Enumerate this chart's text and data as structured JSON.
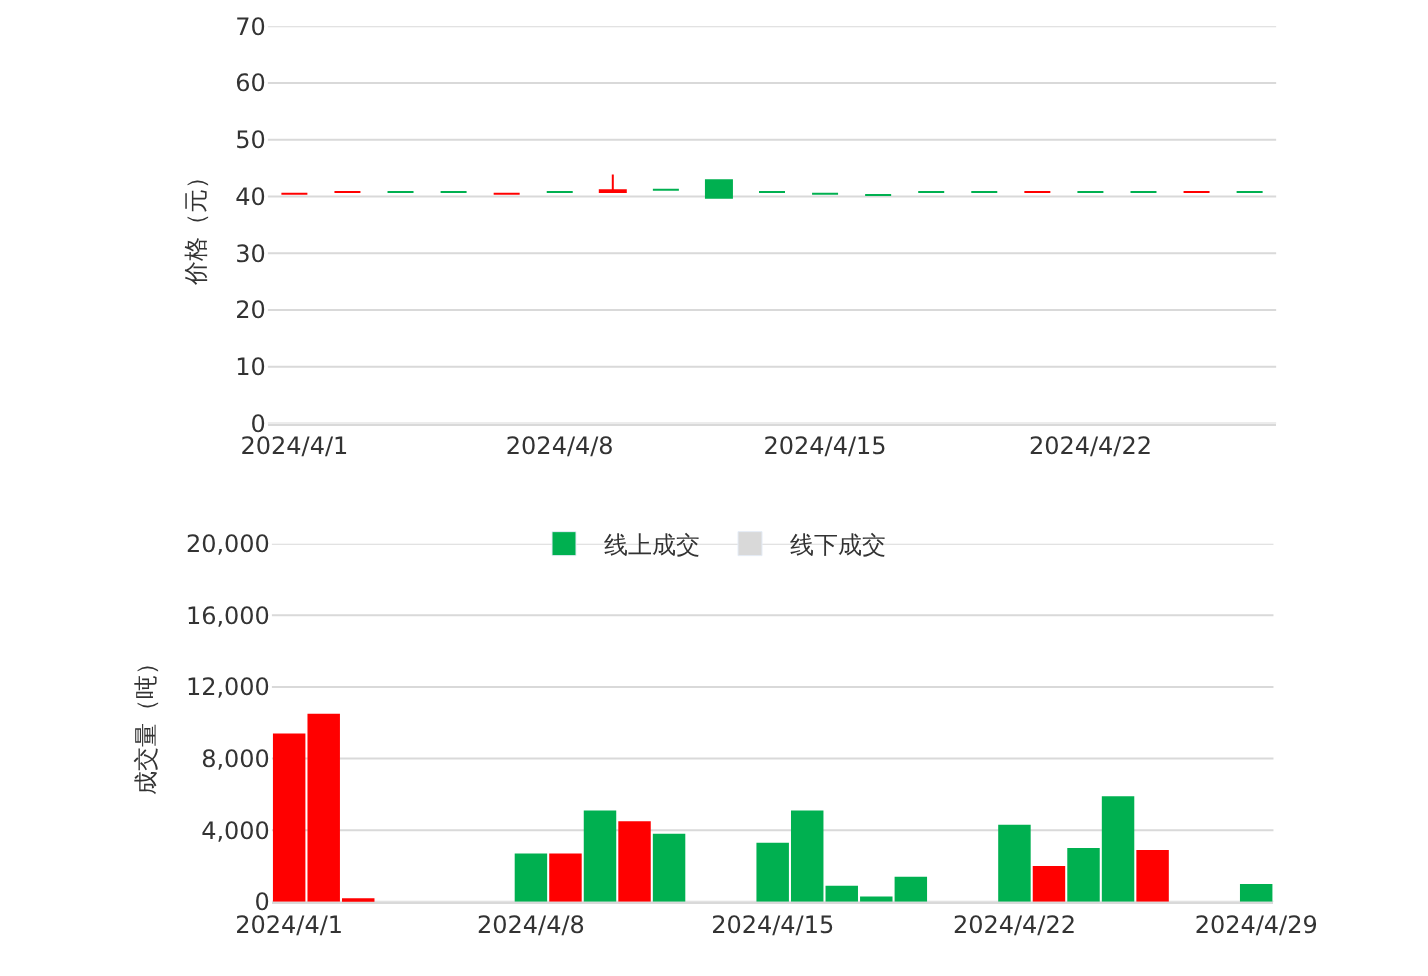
{
  "chart_data": [
    {
      "type": "candlestick",
      "ylabel": "价格（元）",
      "categories": [
        "2024/4/1",
        null,
        null,
        null,
        null,
        "2024/4/8",
        null,
        null,
        null,
        null,
        "2024/4/15",
        null,
        null,
        null,
        null,
        "2024/4/22",
        null,
        null,
        null
      ],
      "ohlc": [
        [
          40.5,
          40.5,
          40.5,
          40.5
        ],
        [
          40.8,
          40.8,
          40.8,
          40.8
        ],
        [
          40.8,
          40.8,
          40.8,
          40.8
        ],
        [
          40.8,
          40.8,
          40.8,
          40.8
        ],
        [
          40.5,
          40.5,
          40.5,
          40.5
        ],
        [
          40.8,
          40.8,
          40.8,
          40.8
        ],
        [
          40.8,
          43.9,
          40.8,
          41.1
        ],
        [
          41.2,
          41.2,
          41.2,
          41.2
        ],
        [
          42.9,
          42.9,
          39.8,
          39.8
        ],
        [
          40.8,
          40.8,
          40.8,
          40.8
        ],
        [
          40.5,
          40.5,
          40.5,
          40.5
        ],
        [
          40.3,
          40.3,
          40.3,
          40.3
        ],
        [
          40.8,
          40.8,
          40.8,
          40.8
        ],
        [
          40.8,
          40.8,
          40.8,
          40.8
        ],
        [
          40.8,
          40.8,
          40.8,
          40.8
        ],
        [
          40.8,
          40.8,
          40.8,
          40.8
        ],
        [
          40.8,
          40.8,
          40.8,
          40.8
        ],
        [
          40.8,
          40.8,
          40.8,
          40.8
        ],
        [
          40.8,
          40.8,
          40.8,
          40.8
        ]
      ],
      "colors": [
        "#ff0000",
        "#ff0000",
        "#00b050",
        "#00b050",
        "#ff0000",
        "#00b050",
        "#ff0000",
        "#00b050",
        "#00b050",
        "#00b050",
        "#00b050",
        "#00b050",
        "#00b050",
        "#00b050",
        "#ff0000",
        "#00b050",
        "#00b050",
        "#ff0000",
        "#00b050"
      ],
      "ylim": [
        0,
        70
      ],
      "yticks": [
        0,
        10,
        20,
        30,
        40,
        50,
        60,
        70
      ],
      "grid": "y",
      "legend": false
    },
    {
      "type": "bar",
      "ylabel": "成交量（吨）",
      "legend": "top",
      "grid": "y",
      "x": [
        "2024-04-01",
        "2024-04-02",
        "2024-04-03",
        "2024-04-08",
        "2024-04-09",
        "2024-04-10",
        "2024-04-11",
        "2024-04-12",
        "2024-04-15",
        "2024-04-16",
        "2024-04-17",
        "2024-04-18",
        "2024-04-19",
        "2024-04-22",
        "2024-04-23",
        "2024-04-24",
        "2024-04-25",
        "2024-04-26",
        "2024-04-29"
      ],
      "series": [
        {
          "name": "线上成交",
          "color": "#00b050",
          "colors": [
            "#ff0000",
            "#ff0000",
            "#ff0000",
            "#00b050",
            "#ff0000",
            "#00b050",
            "#ff0000",
            "#00b050",
            "#00b050",
            "#00b050",
            "#00b050",
            "#00b050",
            "#00b050",
            "#00b050",
            "#ff0000",
            "#00b050",
            "#00b050",
            "#ff0000",
            "#00b050"
          ],
          "values": [
            9400,
            10500,
            200,
            2700,
            2700,
            5100,
            4500,
            3800,
            3300,
            5100,
            900,
            300,
            1400,
            4300,
            2000,
            3000,
            5900,
            2900,
            1000
          ]
        },
        {
          "name": "线下成交",
          "color": "#d9d9d9",
          "values": [
            null,
            null,
            null,
            null,
            null,
            null,
            null,
            null,
            null,
            null,
            null,
            null,
            null,
            null,
            null,
            null,
            null,
            null,
            null
          ]
        }
      ],
      "xlim": [
        "2024-03-31T12:00",
        "2024-04-29T12:00"
      ],
      "xticks": [
        {
          "value": "2024-04-01",
          "label": "2024/4/1"
        },
        {
          "value": "2024-04-08",
          "label": "2024/4/8"
        },
        {
          "value": "2024-04-15",
          "label": "2024/4/15"
        },
        {
          "value": "2024-04-22",
          "label": "2024/4/22"
        },
        {
          "value": "2024-04-29",
          "label": "2024/4/29"
        }
      ],
      "ylim": [
        0,
        20000
      ],
      "yticks": [
        {
          "value": 20000,
          "label": "20,000"
        },
        {
          "value": 16000,
          "label": "16,000"
        },
        {
          "value": 12000,
          "label": "12,000"
        },
        {
          "value": 8000,
          "label": "8,000"
        },
        {
          "value": 4000,
          "label": "4,000"
        },
        0
      ]
    }
  ]
}
